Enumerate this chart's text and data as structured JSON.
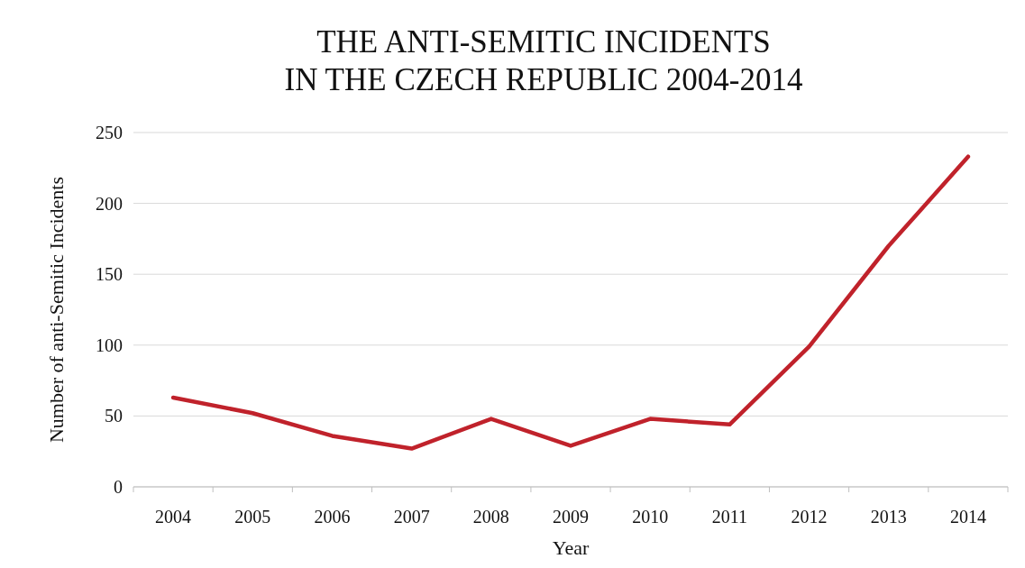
{
  "chart_data": {
    "type": "line",
    "title": "THE ANTI-SEMITIC INCIDENTS\nIN THE CZECH REPUBLIC 2004-2014",
    "xlabel": "Year",
    "ylabel": "Number of anti-Semitic Incidents",
    "categories": [
      "2004",
      "2005",
      "2006",
      "2007",
      "2008",
      "2009",
      "2010",
      "2011",
      "2012",
      "2013",
      "2014"
    ],
    "series": [
      {
        "color": "#c0222b",
        "values": [
          63,
          52,
          36,
          27,
          48,
          29,
          48,
          44,
          99,
          170,
          233
        ]
      }
    ],
    "ylim": [
      0,
      250
    ],
    "yticks": [
      0,
      50,
      100,
      150,
      200,
      250
    ],
    "grid": "y",
    "marker": "none",
    "line_style": "solid"
  }
}
